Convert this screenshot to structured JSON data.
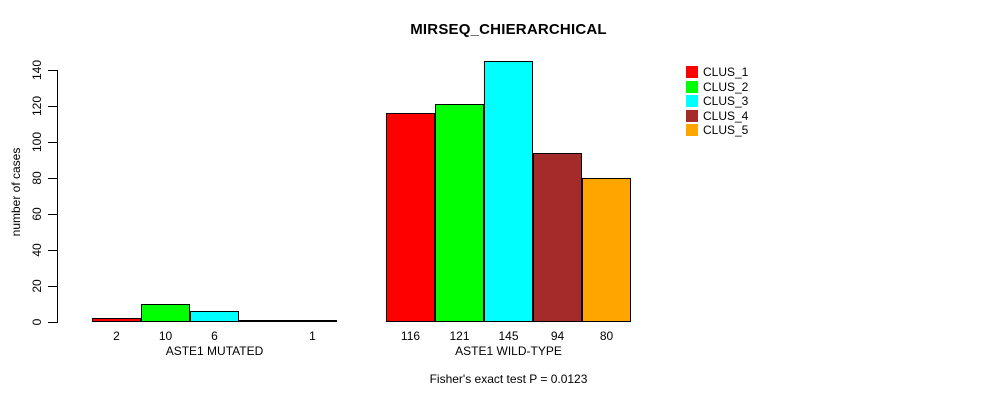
{
  "chart_data": {
    "type": "bar",
    "title": "MIRSEQ_CHIERARCHICAL",
    "ylabel": "number of cases",
    "xlabel": "",
    "ylim": [
      0,
      145
    ],
    "yticks": [
      0,
      20,
      40,
      60,
      80,
      100,
      120,
      140
    ],
    "grid": false,
    "legend_position": "top-right",
    "series": [
      {
        "name": "CLUS_1",
        "color": "#ff0000"
      },
      {
        "name": "CLUS_2",
        "color": "#00ff00"
      },
      {
        "name": "CLUS_3",
        "color": "#00ffff"
      },
      {
        "name": "CLUS_4",
        "color": "#a52a2a"
      },
      {
        "name": "CLUS_5",
        "color": "#ffa500"
      }
    ],
    "groups": [
      {
        "label": "ASTE1 MUTATED",
        "values": [
          2,
          10,
          6,
          0,
          1
        ],
        "bar_labels": [
          "2",
          "10",
          "6",
          "",
          "1"
        ]
      },
      {
        "label": "ASTE1 WILD-TYPE",
        "values": [
          116,
          121,
          145,
          94,
          80
        ],
        "bar_labels": [
          "116",
          "121",
          "145",
          "94",
          "80"
        ]
      }
    ],
    "annotation": "Fisher's exact test P = 0.0123"
  }
}
